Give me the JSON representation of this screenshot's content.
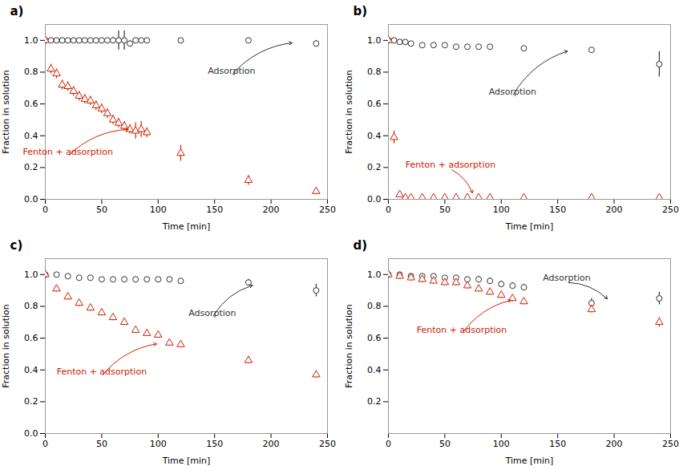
{
  "chart_data": [
    {
      "type": "scatter",
      "title": "a)",
      "xlabel": "Time [min]",
      "ylabel": "Fraction in solution",
      "xlim": [
        0,
        250
      ],
      "xticks": [
        0,
        50,
        100,
        150,
        200,
        250
      ],
      "ylim": [
        0.0,
        1.1
      ],
      "yticks": [
        0.0,
        0.2,
        0.4,
        0.6,
        0.8,
        1.0
      ],
      "series": [
        {
          "color": "#333333",
          "marker": "circle",
          "x": [
            0,
            5,
            10,
            15,
            20,
            25,
            30,
            35,
            40,
            45,
            50,
            55,
            60,
            65,
            70,
            75,
            80,
            85,
            90,
            120,
            180,
            240
          ],
          "values": [
            1.0,
            1.0,
            1.0,
            1.0,
            1.0,
            1.0,
            1.0,
            1.0,
            1.0,
            1.0,
            1.0,
            1.0,
            1.0,
            1.0,
            1.0,
            0.98,
            1.0,
            1.0,
            1.0,
            1.0,
            1.0,
            0.98
          ],
          "errors": [
            0.01,
            0.01,
            0.01,
            0.01,
            0.01,
            0.01,
            0.01,
            0.01,
            0.01,
            0.01,
            0.01,
            0.01,
            0.02,
            0.06,
            0.06,
            0.02,
            0.01,
            0.01,
            0.01,
            0.01,
            0.01,
            0.02
          ]
        },
        {
          "color": "#cc2200",
          "marker": "triangle",
          "x": [
            0,
            5,
            10,
            15,
            20,
            25,
            30,
            35,
            40,
            45,
            50,
            55,
            60,
            65,
            70,
            75,
            80,
            85,
            90,
            120,
            180,
            240
          ],
          "values": [
            1.0,
            0.82,
            0.79,
            0.72,
            0.71,
            0.68,
            0.65,
            0.63,
            0.62,
            0.59,
            0.57,
            0.54,
            0.5,
            0.48,
            0.46,
            0.44,
            0.43,
            0.44,
            0.42,
            0.29,
            0.12,
            0.05
          ],
          "errors": [
            0.02,
            0.03,
            0.03,
            0.03,
            0.03,
            0.03,
            0.03,
            0.03,
            0.03,
            0.03,
            0.03,
            0.03,
            0.03,
            0.03,
            0.03,
            0.03,
            0.05,
            0.05,
            0.03,
            0.05,
            0.03,
            0.02
          ]
        }
      ],
      "annotations": [
        {
          "text": "Adsorption",
          "color": "#333333",
          "x": 165,
          "y": 0.78,
          "tip_x": 220,
          "tip_y": 0.985
        },
        {
          "text": "Fenton + adsorption",
          "color": "#cc2200",
          "x": 20,
          "y": 0.27,
          "tip_x": 75,
          "tip_y": 0.44
        }
      ]
    },
    {
      "type": "scatter",
      "title": "b)",
      "xlabel": "Time [min]",
      "ylabel": "Fraction in solution",
      "xlim": [
        0,
        250
      ],
      "xticks": [
        0,
        50,
        100,
        150,
        200,
        250
      ],
      "ylim": [
        0.0,
        1.1
      ],
      "yticks": [
        0.0,
        0.2,
        0.4,
        0.6,
        0.8,
        1.0
      ],
      "series": [
        {
          "color": "#333333",
          "marker": "circle",
          "x": [
            0,
            5,
            10,
            15,
            20,
            30,
            40,
            50,
            60,
            70,
            80,
            90,
            120,
            180,
            240
          ],
          "values": [
            1.0,
            1.0,
            0.99,
            0.99,
            0.98,
            0.97,
            0.97,
            0.97,
            0.96,
            0.96,
            0.96,
            0.96,
            0.95,
            0.94,
            0.85
          ],
          "errors": [
            0.01,
            0.01,
            0.01,
            0.01,
            0.01,
            0.01,
            0.01,
            0.01,
            0.01,
            0.01,
            0.01,
            0.01,
            0.01,
            0.01,
            0.08
          ]
        },
        {
          "color": "#cc2200",
          "marker": "triangle",
          "x": [
            0,
            5,
            10,
            15,
            20,
            30,
            40,
            50,
            60,
            70,
            80,
            90,
            120,
            180,
            240
          ],
          "values": [
            1.0,
            0.39,
            0.03,
            0.01,
            0.01,
            0.01,
            0.01,
            0.01,
            0.01,
            0.01,
            0.01,
            0.01,
            0.01,
            0.01,
            0.01
          ],
          "errors": [
            0.02,
            0.04,
            0.01,
            0.005,
            0.005,
            0.005,
            0.005,
            0.005,
            0.005,
            0.005,
            0.005,
            0.005,
            0.005,
            0.005,
            0.005
          ]
        }
      ],
      "annotations": [
        {
          "text": "Adsorption",
          "color": "#333333",
          "x": 110,
          "y": 0.65,
          "tip_x": 160,
          "tip_y": 0.935
        },
        {
          "text": "Fenton + adsorption",
          "color": "#cc2200",
          "x": 55,
          "y": 0.19,
          "tip_x": 75,
          "tip_y": 0.03
        }
      ]
    },
    {
      "type": "scatter",
      "title": "c)",
      "xlabel": "Time [min]",
      "ylabel": "Fraction in solution",
      "xlim": [
        0,
        250
      ],
      "xticks": [
        0,
        50,
        100,
        150,
        200,
        250
      ],
      "ylim": [
        0.0,
        1.1
      ],
      "yticks": [
        0.0,
        0.2,
        0.4,
        0.6,
        0.8,
        1.0
      ],
      "series": [
        {
          "color": "#333333",
          "marker": "circle",
          "x": [
            0,
            10,
            20,
            30,
            40,
            50,
            60,
            70,
            80,
            90,
            100,
            110,
            120,
            180,
            240
          ],
          "values": [
            1.0,
            1.0,
            0.99,
            0.98,
            0.98,
            0.97,
            0.97,
            0.97,
            0.97,
            0.97,
            0.97,
            0.97,
            0.96,
            0.95,
            0.9
          ],
          "errors": [
            0.01,
            0.01,
            0.01,
            0.01,
            0.01,
            0.01,
            0.01,
            0.01,
            0.01,
            0.01,
            0.01,
            0.01,
            0.01,
            0.02,
            0.04
          ]
        },
        {
          "color": "#cc2200",
          "marker": "triangle",
          "x": [
            0,
            10,
            20,
            30,
            40,
            50,
            60,
            70,
            80,
            90,
            100,
            110,
            120,
            180,
            240
          ],
          "values": [
            1.0,
            0.91,
            0.86,
            0.82,
            0.79,
            0.76,
            0.73,
            0.7,
            0.65,
            0.63,
            0.62,
            0.57,
            0.56,
            0.46,
            0.37
          ],
          "errors": [
            0.02,
            0.02,
            0.02,
            0.02,
            0.02,
            0.02,
            0.02,
            0.02,
            0.02,
            0.02,
            0.02,
            0.02,
            0.02,
            0.02,
            0.02
          ]
        }
      ],
      "annotations": [
        {
          "text": "Adsorption",
          "color": "#333333",
          "x": 148,
          "y": 0.73,
          "tip_x": 185,
          "tip_y": 0.935
        },
        {
          "text": "Fenton + adsorption",
          "color": "#cc2200",
          "x": 50,
          "y": 0.36,
          "tip_x": 100,
          "tip_y": 0.565
        }
      ]
    },
    {
      "type": "scatter",
      "title": "d)",
      "xlabel": "Time [min]",
      "ylabel": "Fraction in solution",
      "xlim": [
        0,
        250
      ],
      "xticks": [
        0,
        50,
        100,
        150,
        200,
        250
      ],
      "ylim": [
        0.0,
        1.1
      ],
      "yticks": [
        0.2,
        0.4,
        0.6,
        0.8,
        1.0
      ],
      "series": [
        {
          "color": "#333333",
          "marker": "circle",
          "x": [
            0,
            10,
            20,
            30,
            40,
            50,
            60,
            70,
            80,
            90,
            100,
            110,
            120,
            180,
            240
          ],
          "values": [
            1.0,
            1.0,
            0.99,
            0.99,
            0.99,
            0.98,
            0.98,
            0.97,
            0.97,
            0.96,
            0.94,
            0.93,
            0.92,
            0.82,
            0.85
          ],
          "errors": [
            0.01,
            0.01,
            0.01,
            0.01,
            0.01,
            0.01,
            0.01,
            0.01,
            0.02,
            0.02,
            0.02,
            0.02,
            0.02,
            0.03,
            0.04
          ]
        },
        {
          "color": "#cc2200",
          "marker": "triangle",
          "x": [
            0,
            10,
            20,
            30,
            40,
            50,
            60,
            70,
            80,
            90,
            100,
            110,
            120,
            180,
            240
          ],
          "values": [
            1.0,
            0.99,
            0.98,
            0.97,
            0.96,
            0.95,
            0.95,
            0.93,
            0.91,
            0.89,
            0.87,
            0.85,
            0.83,
            0.78,
            0.7
          ],
          "errors": [
            0.02,
            0.02,
            0.02,
            0.02,
            0.02,
            0.02,
            0.02,
            0.02,
            0.02,
            0.02,
            0.02,
            0.02,
            0.02,
            0.02,
            0.03
          ]
        }
      ],
      "annotations": [
        {
          "text": "Adsorption",
          "color": "#333333",
          "x": 158,
          "y": 0.95,
          "tip_x": 195,
          "tip_y": 0.84
        },
        {
          "text": "Fenton + adsorption",
          "color": "#cc2200",
          "x": 65,
          "y": 0.625,
          "tip_x": 110,
          "tip_y": 0.84
        }
      ]
    }
  ]
}
